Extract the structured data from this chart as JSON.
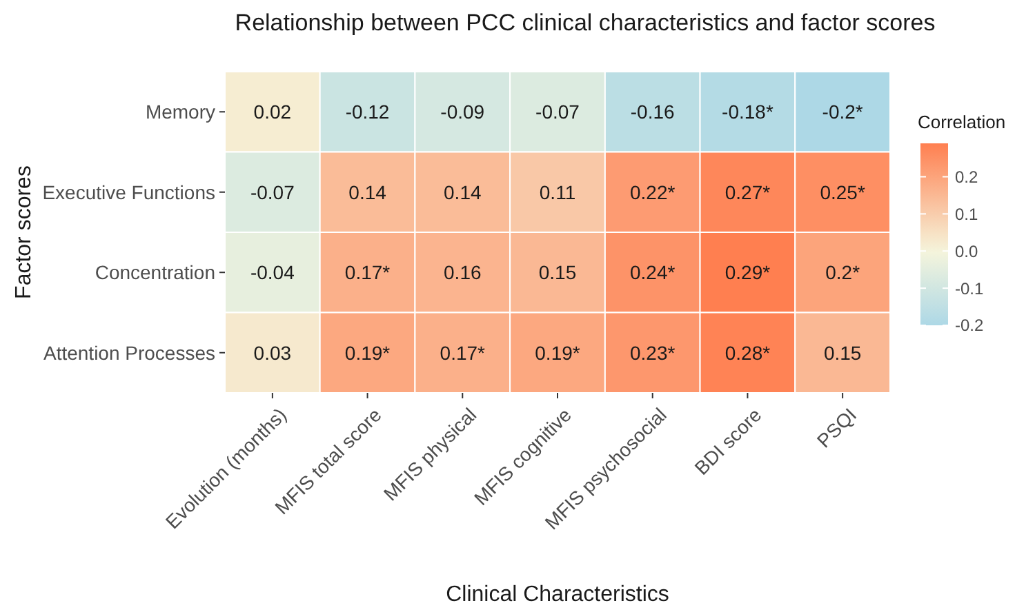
{
  "chart_data": {
    "type": "heatmap",
    "title": "Relationship between PCC clinical characteristics and factor scores",
    "xlabel": "Clinical Characteristics",
    "ylabel": "Factor scores",
    "clabel": "Correlation",
    "categories": [
      "Evolution (months)",
      "MFIS total score",
      "MFIS physical",
      "MFIS cognitive",
      "MFIS psychosocial",
      "BDI score",
      "PSQI"
    ],
    "y_categories": [
      "Memory",
      "Executive Functions",
      "Concentration",
      "Attention Processes"
    ],
    "cells": [
      [
        0.02,
        -0.12,
        -0.09,
        -0.07,
        -0.16,
        -0.18,
        -0.2
      ],
      [
        -0.07,
        0.14,
        0.14,
        0.11,
        0.22,
        0.27,
        0.25
      ],
      [
        -0.04,
        0.17,
        0.16,
        0.15,
        0.24,
        0.29,
        0.2
      ],
      [
        0.03,
        0.19,
        0.17,
        0.19,
        0.23,
        0.28,
        0.15
      ]
    ],
    "cell_labels": [
      [
        "0.02",
        "-0.12",
        "-0.09",
        "-0.07",
        "-0.16",
        "-0.18*",
        "-0.2*"
      ],
      [
        "-0.07",
        "0.14",
        "0.14",
        "0.11",
        "0.22*",
        "0.27*",
        "0.25*"
      ],
      [
        "-0.04",
        "0.17*",
        "0.16",
        "0.15",
        "0.24*",
        "0.29*",
        "0.2*"
      ],
      [
        "0.03",
        "0.19*",
        "0.17*",
        "0.19*",
        "0.23*",
        "0.28*",
        "0.15"
      ]
    ],
    "clim": [
      -0.2,
      0.29
    ],
    "cticks": [
      -0.2,
      -0.1,
      {
        "value": 0,
        "label": "0.0"
      },
      {
        "value": 0.1,
        "label": "0.1"
      },
      {
        "value": 0.2,
        "label": "0.2"
      }
    ],
    "colors": [
      "#add8e6",
      "#f5f5dc",
      "#ff7f50"
    ]
  }
}
